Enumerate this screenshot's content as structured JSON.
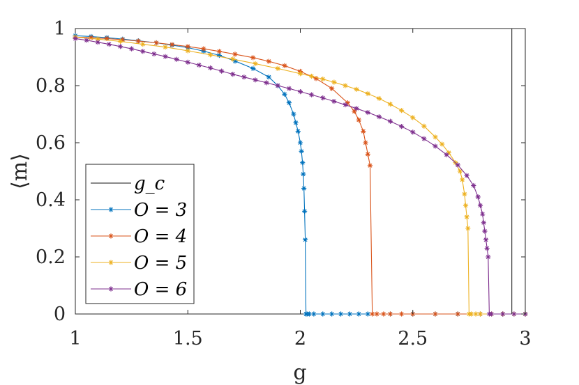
{
  "chart_data": {
    "type": "line",
    "xlabel": "g",
    "ylabel": "⟨m⟩",
    "xlim": [
      1,
      3
    ],
    "ylim": [
      0,
      1
    ],
    "xticks": [
      "1",
      "1.5",
      "2",
      "2.5",
      "3"
    ],
    "yticks": [
      "0",
      "0.2",
      "0.4",
      "0.6",
      "0.8",
      "1"
    ],
    "legend_position": "bottom-left",
    "grid": false,
    "vline": {
      "name": "g_c",
      "x": 2.94,
      "color": "#404040"
    },
    "series": [
      {
        "name": "O = 3",
        "color": "#0072BD",
        "x": [
          1.0,
          1.07,
          1.14,
          1.21,
          1.28,
          1.36,
          1.43,
          1.5,
          1.57,
          1.64,
          1.71,
          1.79,
          1.86,
          1.9,
          1.93,
          1.95,
          1.97,
          1.98,
          1.99,
          2.0,
          2.005,
          2.01,
          2.013,
          2.016,
          2.019,
          2.022,
          2.025,
          2.03,
          2.04,
          2.06,
          2.1,
          2.14,
          2.18,
          2.22,
          2.26,
          2.3,
          2.4,
          2.5,
          2.6,
          2.7,
          2.8,
          2.9,
          3.0
        ],
        "y": [
          0.975,
          0.972,
          0.968,
          0.963,
          0.957,
          0.95,
          0.942,
          0.933,
          0.921,
          0.906,
          0.886,
          0.86,
          0.83,
          0.8,
          0.77,
          0.74,
          0.7,
          0.67,
          0.64,
          0.6,
          0.57,
          0.53,
          0.49,
          0.44,
          0.36,
          0.26,
          0.0,
          0.0,
          0.0,
          0.0,
          0.0,
          0.0,
          0.0,
          0.0,
          0.0,
          0.0,
          0.0,
          0.0,
          0.0,
          0.0,
          0.0,
          0.0,
          0.0
        ]
      },
      {
        "name": "O = 4",
        "color": "#D95319",
        "x": [
          1.0,
          1.07,
          1.14,
          1.21,
          1.28,
          1.36,
          1.43,
          1.5,
          1.57,
          1.64,
          1.71,
          1.79,
          1.86,
          1.93,
          2.0,
          2.07,
          2.14,
          2.21,
          2.24,
          2.26,
          2.28,
          2.29,
          2.3,
          2.31,
          2.32,
          2.34,
          2.37,
          2.4,
          2.45,
          2.5,
          2.6,
          2.7,
          2.8,
          2.9,
          3.0
        ],
        "y": [
          0.97,
          0.968,
          0.965,
          0.961,
          0.956,
          0.95,
          0.944,
          0.937,
          0.929,
          0.92,
          0.91,
          0.898,
          0.885,
          0.87,
          0.85,
          0.825,
          0.79,
          0.74,
          0.71,
          0.68,
          0.64,
          0.6,
          0.56,
          0.52,
          0.0,
          0.0,
          0.0,
          0.0,
          0.0,
          0.0,
          0.0,
          0.0,
          0.0,
          0.0,
          0.0
        ]
      },
      {
        "name": "O = 5",
        "color": "#EDB120",
        "x": [
          1.0,
          1.1,
          1.2,
          1.3,
          1.4,
          1.5,
          1.6,
          1.7,
          1.8,
          1.9,
          2.0,
          2.05,
          2.1,
          2.15,
          2.2,
          2.25,
          2.3,
          2.35,
          2.4,
          2.45,
          2.5,
          2.55,
          2.6,
          2.63,
          2.66,
          2.69,
          2.71,
          2.72,
          2.73,
          2.735,
          2.74,
          2.745,
          2.75,
          2.76,
          2.78,
          2.8,
          2.85,
          2.9,
          2.95,
          3.0
        ],
        "y": [
          0.97,
          0.963,
          0.955,
          0.945,
          0.935,
          0.922,
          0.908,
          0.893,
          0.877,
          0.86,
          0.842,
          0.833,
          0.823,
          0.812,
          0.8,
          0.787,
          0.772,
          0.755,
          0.735,
          0.713,
          0.688,
          0.658,
          0.62,
          0.595,
          0.565,
          0.53,
          0.5,
          0.47,
          0.42,
          0.38,
          0.34,
          0.3,
          0.0,
          0.0,
          0.0,
          0.0,
          0.0,
          0.0,
          0.0,
          0.0
        ]
      },
      {
        "name": "O = 6",
        "color": "#7E2F8E",
        "x": [
          1.0,
          1.05,
          1.1,
          1.15,
          1.2,
          1.25,
          1.3,
          1.35,
          1.4,
          1.45,
          1.5,
          1.55,
          1.6,
          1.65,
          1.7,
          1.75,
          1.8,
          1.85,
          1.9,
          1.95,
          2.0,
          2.05,
          2.1,
          2.15,
          2.2,
          2.25,
          2.3,
          2.35,
          2.4,
          2.45,
          2.5,
          2.55,
          2.6,
          2.65,
          2.7,
          2.74,
          2.77,
          2.79,
          2.8,
          2.81,
          2.815,
          2.82,
          2.825,
          2.83,
          2.835,
          2.84,
          2.85,
          2.9,
          2.95,
          3.0
        ],
        "y": [
          0.965,
          0.959,
          0.952,
          0.945,
          0.937,
          0.929,
          0.92,
          0.911,
          0.902,
          0.892,
          0.882,
          0.872,
          0.862,
          0.851,
          0.84,
          0.83,
          0.82,
          0.81,
          0.8,
          0.79,
          0.779,
          0.768,
          0.757,
          0.745,
          0.733,
          0.72,
          0.706,
          0.691,
          0.675,
          0.657,
          0.637,
          0.614,
          0.588,
          0.558,
          0.522,
          0.485,
          0.45,
          0.41,
          0.38,
          0.35,
          0.32,
          0.29,
          0.26,
          0.23,
          0.2,
          0.0,
          0.0,
          0.0,
          0.0,
          0.0
        ]
      }
    ]
  }
}
